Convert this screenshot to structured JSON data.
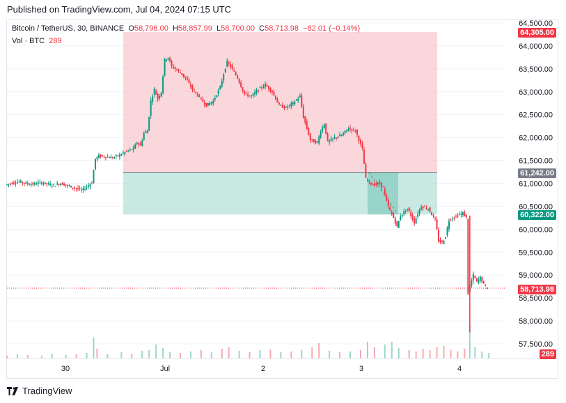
{
  "header": {
    "published": "Published on TradingView.com, Jul 04, 2024 07:15 UTC"
  },
  "legend": {
    "symbol": "Bitcoin / TetherUS, 30, BINANCE",
    "o_label": "O",
    "o": "58,796.00",
    "h_label": "H",
    "h": "58,857.99",
    "l_label": "L",
    "l": "58,700.00",
    "c_label": "C",
    "c": "58,713.98",
    "change": "−82.01 (−0.14%)",
    "vol_label": "Vol · BTC",
    "vol_value": "289"
  },
  "badges": {
    "target": "64,305.00",
    "entry": "61,242.00",
    "stop": "60,322.00",
    "last": "58,713.98",
    "volume": "289"
  },
  "footer": {
    "brand": "TradingView"
  },
  "colors": {
    "up": "#089981",
    "down": "#f23645",
    "profit_zone": "#f7c9cd",
    "stop_zone": "#b7e2d8",
    "entry_line": "#787b86"
  },
  "chart_data": {
    "type": "candlestick",
    "title": "Bitcoin / TetherUS, 30, BINANCE",
    "y_ticks": [
      "64,500.00",
      "64,000.00",
      "63,500.00",
      "63,000.00",
      "62,500.00",
      "62,000.00",
      "61,500.00",
      "61,000.00",
      "60,500.00",
      "60,000.00",
      "59,500.00",
      "59,000.00",
      "58,500.00",
      "58,000.00",
      "57,500.00"
    ],
    "x_ticks": [
      "30",
      "Jul",
      "2",
      "3",
      "4"
    ],
    "ylim": [
      57300,
      64650
    ],
    "position_tool": {
      "entry": 61242,
      "target": 64305,
      "stop": 60322
    },
    "last_price": 58713.98,
    "path": [
      [
        0,
        60970
      ],
      [
        4,
        61010
      ],
      [
        8,
        61040
      ],
      [
        12,
        61000
      ],
      [
        16,
        60980
      ],
      [
        20,
        61020
      ],
      [
        24,
        60990
      ],
      [
        28,
        60960
      ],
      [
        32,
        61000
      ],
      [
        36,
        60950
      ],
      [
        40,
        60900
      ],
      [
        44,
        60850
      ],
      [
        46,
        60900
      ],
      [
        48,
        60960
      ],
      [
        50,
        61020
      ],
      [
        52,
        61540
      ],
      [
        54,
        61600
      ],
      [
        58,
        61580
      ],
      [
        62,
        61560
      ],
      [
        66,
        61620
      ],
      [
        70,
        61700
      ],
      [
        74,
        61760
      ],
      [
        76,
        61900
      ],
      [
        78,
        61820
      ],
      [
        80,
        62100
      ],
      [
        82,
        62150
      ],
      [
        84,
        62800
      ],
      [
        86,
        63050
      ],
      [
        88,
        62850
      ],
      [
        90,
        63000
      ],
      [
        92,
        63700
      ],
      [
        94,
        63750
      ],
      [
        96,
        63550
      ],
      [
        100,
        63450
      ],
      [
        104,
        63300
      ],
      [
        108,
        63050
      ],
      [
        112,
        62880
      ],
      [
        116,
        62700
      ],
      [
        120,
        62800
      ],
      [
        124,
        63100
      ],
      [
        126,
        63400
      ],
      [
        128,
        63650
      ],
      [
        130,
        63550
      ],
      [
        134,
        63300
      ],
      [
        138,
        62950
      ],
      [
        142,
        62900
      ],
      [
        146,
        63050
      ],
      [
        150,
        63150
      ],
      [
        154,
        63000
      ],
      [
        158,
        62700
      ],
      [
        162,
        62650
      ],
      [
        166,
        62750
      ],
      [
        170,
        62900
      ],
      [
        172,
        62450
      ],
      [
        174,
        62200
      ],
      [
        176,
        61950
      ],
      [
        180,
        61880
      ],
      [
        182,
        62150
      ],
      [
        184,
        62300
      ],
      [
        186,
        61900
      ],
      [
        190,
        62000
      ],
      [
        194,
        62050
      ],
      [
        198,
        62200
      ],
      [
        202,
        62150
      ],
      [
        204,
        61950
      ],
      [
        206,
        61750
      ],
      [
        208,
        61100
      ],
      [
        212,
        60970
      ],
      [
        216,
        61000
      ],
      [
        218,
        60900
      ],
      [
        220,
        60600
      ],
      [
        222,
        60400
      ],
      [
        224,
        60250
      ],
      [
        226,
        60050
      ],
      [
        228,
        60300
      ],
      [
        232,
        60450
      ],
      [
        236,
        60150
      ],
      [
        238,
        60350
      ],
      [
        240,
        60500
      ],
      [
        244,
        60450
      ],
      [
        248,
        60200
      ],
      [
        250,
        59750
      ],
      [
        252,
        59700
      ],
      [
        254,
        59850
      ],
      [
        256,
        60200
      ],
      [
        258,
        60250
      ],
      [
        262,
        60320
      ],
      [
        264,
        60350
      ],
      [
        266,
        60250
      ],
      [
        267,
        58600
      ],
      [
        268,
        58750
      ],
      [
        270,
        59000
      ],
      [
        272,
        58850
      ],
      [
        274,
        58950
      ],
      [
        276,
        58800
      ],
      [
        278,
        58713.98
      ]
    ],
    "volume": [
      [
        0,
        4
      ],
      [
        6,
        6
      ],
      [
        12,
        5
      ],
      [
        20,
        4
      ],
      [
        26,
        7
      ],
      [
        34,
        5
      ],
      [
        40,
        6
      ],
      [
        46,
        8
      ],
      [
        50,
        30
      ],
      [
        52,
        14
      ],
      [
        58,
        6
      ],
      [
        66,
        9
      ],
      [
        72,
        7
      ],
      [
        78,
        11
      ],
      [
        82,
        12
      ],
      [
        86,
        20
      ],
      [
        90,
        15
      ],
      [
        94,
        9
      ],
      [
        100,
        8
      ],
      [
        106,
        10
      ],
      [
        112,
        12
      ],
      [
        118,
        9
      ],
      [
        124,
        14
      ],
      [
        128,
        16
      ],
      [
        134,
        11
      ],
      [
        140,
        9
      ],
      [
        146,
        12
      ],
      [
        152,
        13
      ],
      [
        158,
        9
      ],
      [
        164,
        10
      ],
      [
        170,
        12
      ],
      [
        176,
        16
      ],
      [
        180,
        22
      ],
      [
        186,
        11
      ],
      [
        192,
        9
      ],
      [
        198,
        10
      ],
      [
        204,
        12
      ],
      [
        208,
        24
      ],
      [
        212,
        16
      ],
      [
        218,
        20
      ],
      [
        222,
        24
      ],
      [
        226,
        15
      ],
      [
        232,
        12
      ],
      [
        236,
        10
      ],
      [
        240,
        14
      ],
      [
        244,
        12
      ],
      [
        248,
        16
      ],
      [
        252,
        18
      ],
      [
        256,
        12
      ],
      [
        260,
        10
      ],
      [
        264,
        14
      ],
      [
        267,
        48
      ],
      [
        270,
        16
      ],
      [
        274,
        10
      ],
      [
        278,
        8
      ]
    ]
  }
}
